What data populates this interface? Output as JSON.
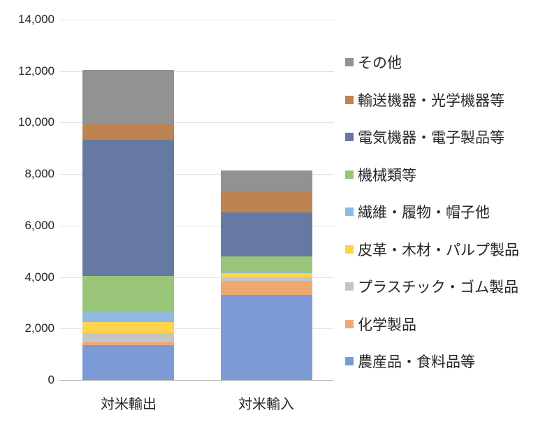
{
  "chart_data": {
    "type": "bar",
    "subtype": "stacked-column",
    "categories": [
      "対米輸出",
      "対米輸入"
    ],
    "series": [
      {
        "id": "agri",
        "name": "農産品・食料品等",
        "color": "#7C9AD5",
        "values": [
          1350,
          3300
        ]
      },
      {
        "id": "chemical",
        "name": "化学製品",
        "color": "#F0A872",
        "values": [
          110,
          540
        ]
      },
      {
        "id": "plastic",
        "name": "プラスチック・ゴム製品",
        "color": "#C5C5C5",
        "values": [
          350,
          140
        ]
      },
      {
        "id": "leather",
        "name": "皮革・木材・パルプ製品",
        "color": "#FFD34D",
        "values": [
          430,
          160
        ]
      },
      {
        "id": "textile",
        "name": "繊維・履物・帽子他",
        "color": "#8FB9E0",
        "values": [
          440,
          50
        ]
      },
      {
        "id": "machinery",
        "name": "機械類等",
        "color": "#98C578",
        "values": [
          1360,
          600
        ]
      },
      {
        "id": "electrical",
        "name": "電気機器・電子製品等",
        "color": "#6679A3",
        "values": [
          5290,
          1710
        ]
      },
      {
        "id": "transport",
        "name": "輸送機器・光学機器等",
        "color": "#BD8350",
        "values": [
          600,
          820
        ]
      },
      {
        "id": "other",
        "name": "その他",
        "color": "#929292",
        "values": [
          2120,
          830
        ]
      }
    ],
    "totals": [
      12050,
      8150
    ],
    "title": "",
    "xlabel": "",
    "ylabel": "",
    "ylim": [
      0,
      14000
    ],
    "ytick_step": 2000,
    "ytick_labels": [
      "0",
      "2,000",
      "4,000",
      "6,000",
      "8,000",
      "10,000",
      "12,000",
      "14,000"
    ],
    "grid": true,
    "legend_position": "right",
    "legend_order": "top-of-stack-first"
  }
}
